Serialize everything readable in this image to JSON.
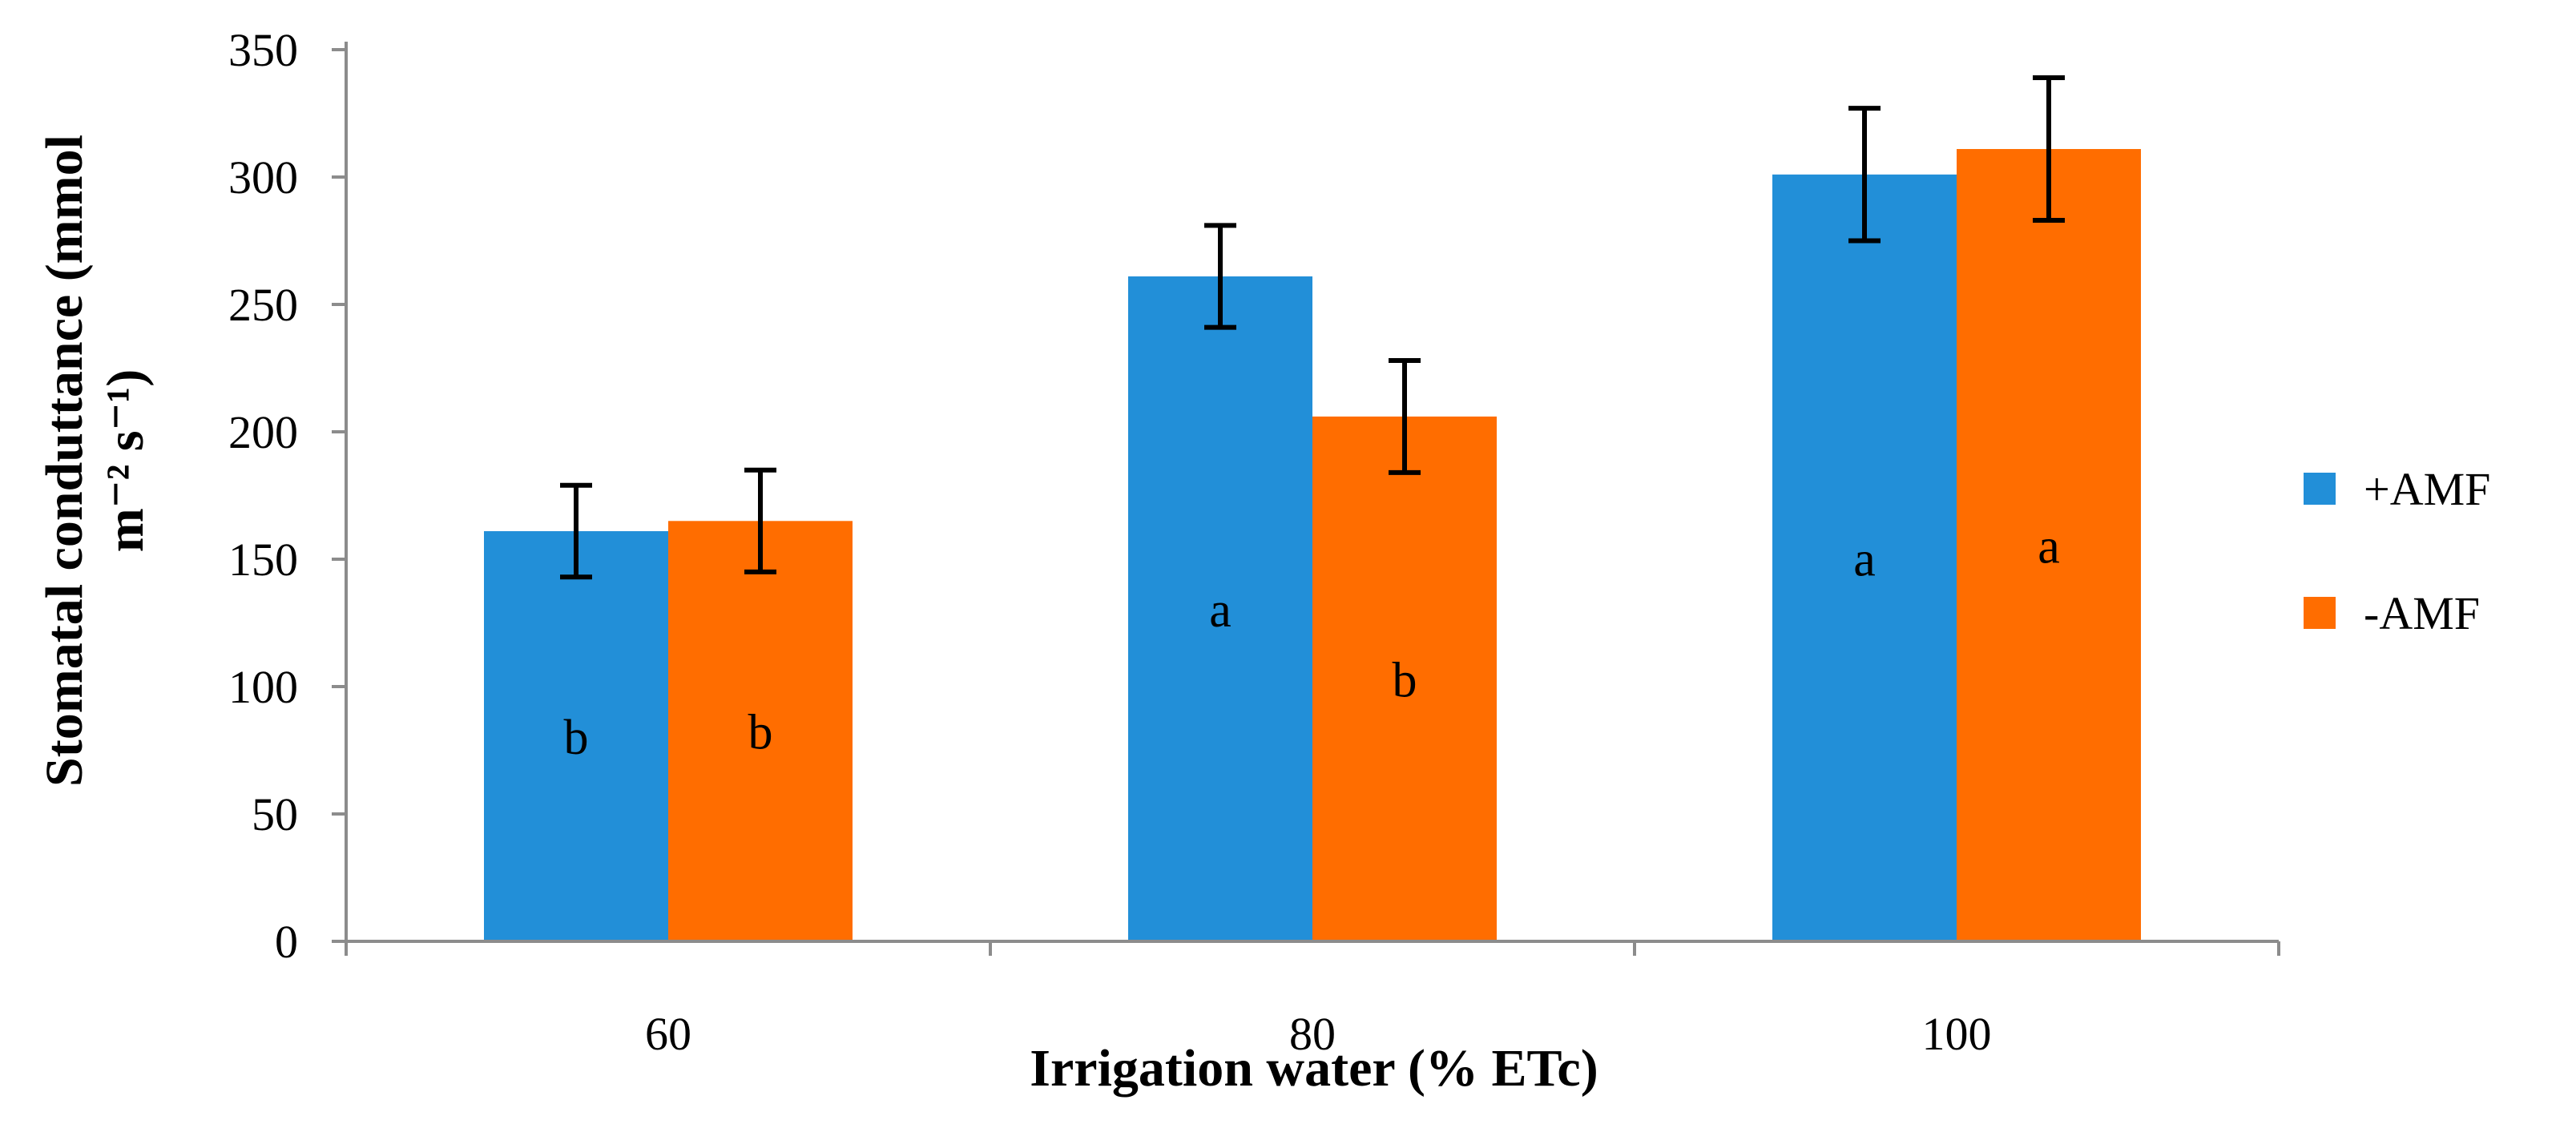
{
  "chart_data": {
    "type": "bar",
    "title": "",
    "categories": [
      "60",
      "80",
      "100"
    ],
    "series": [
      {
        "name": "+AMF",
        "color": "#228FD8",
        "values": [
          161,
          261,
          301
        ],
        "errors": [
          18,
          20,
          26
        ],
        "letters": [
          "b",
          "a",
          "a"
        ]
      },
      {
        "name": "-AMF",
        "color": "#FF6D00",
        "values": [
          165,
          206,
          311
        ],
        "errors": [
          20,
          22,
          28
        ],
        "letters": [
          "b",
          "b",
          "a"
        ]
      }
    ],
    "xlabel": "Irrigation water (% ETc)",
    "ylabel_line1": "Stomatal conduttance (mmol",
    "ylabel_line2": "m⁻² s⁻¹)",
    "ylim": [
      0,
      350
    ],
    "yticks": [
      "0",
      "50",
      "100",
      "150",
      "200",
      "250",
      "300",
      "350"
    ],
    "legend_position": "right",
    "grid": false
  }
}
